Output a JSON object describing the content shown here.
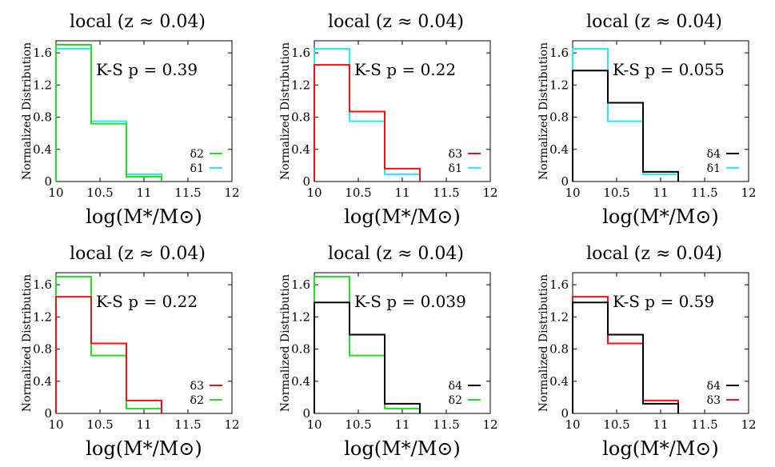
{
  "chart_data": [
    {
      "type": "histogram",
      "title": "local (z ≈ 0.04)",
      "xlabel": "log(M*/M⊙)",
      "ylabel": "Normalized Distribution",
      "xlim": [
        10,
        12
      ],
      "ylim": [
        0,
        1.75
      ],
      "x_ticks": [
        "10",
        "10.5",
        "11",
        "11.5",
        "12"
      ],
      "y_ticks": [
        "0",
        "0.4",
        "0.8",
        "1.2",
        "1.6"
      ],
      "annotation": "K-S p = 0.39",
      "bin_edges": [
        10,
        10.4,
        10.8,
        11.2
      ],
      "series": [
        {
          "name": "δ2",
          "color": "#22dd22",
          "values": [
            1.7,
            0.72,
            0.06
          ]
        },
        {
          "name": "δ1",
          "color": "#22eeee",
          "values": [
            1.65,
            0.75,
            0.09
          ]
        }
      ]
    },
    {
      "type": "histogram",
      "title": "local (z ≈ 0.04)",
      "xlabel": "log(M*/M⊙)",
      "ylabel": "Normalized Distribution",
      "xlim": [
        10,
        12
      ],
      "ylim": [
        0,
        1.75
      ],
      "x_ticks": [
        "10",
        "10.5",
        "11",
        "11.5",
        "12"
      ],
      "y_ticks": [
        "0",
        "0.4",
        "0.8",
        "1.2",
        "1.6"
      ],
      "annotation": "K-S p = 0.22",
      "bin_edges": [
        10,
        10.4,
        10.8,
        11.2
      ],
      "series": [
        {
          "name": "δ3",
          "color": "#ee1111",
          "values": [
            1.45,
            0.87,
            0.16
          ]
        },
        {
          "name": "δ1",
          "color": "#22eeee",
          "values": [
            1.65,
            0.75,
            0.09
          ]
        }
      ]
    },
    {
      "type": "histogram",
      "title": "local (z ≈ 0.04)",
      "xlabel": "log(M*/M⊙)",
      "ylabel": "Normalized Distribution",
      "xlim": [
        10,
        12
      ],
      "ylim": [
        0,
        1.75
      ],
      "x_ticks": [
        "10",
        "10.5",
        "11",
        "11.5",
        "12"
      ],
      "y_ticks": [
        "0",
        "0.4",
        "0.8",
        "1.2",
        "1.6"
      ],
      "annotation": "K-S p = 0.055",
      "bin_edges": [
        10,
        10.4,
        10.8,
        11.2
      ],
      "series": [
        {
          "name": "δ4",
          "color": "#000000",
          "values": [
            1.38,
            0.98,
            0.12
          ]
        },
        {
          "name": "δ1",
          "color": "#22eeee",
          "values": [
            1.65,
            0.75,
            0.09
          ]
        }
      ]
    },
    {
      "type": "histogram",
      "title": "local (z ≈ 0.04)",
      "xlabel": "log(M*/M⊙)",
      "ylabel": "Normalized Distribution",
      "xlim": [
        10,
        12
      ],
      "ylim": [
        0,
        1.75
      ],
      "x_ticks": [
        "10",
        "10.5",
        "11",
        "11.5",
        "12"
      ],
      "y_ticks": [
        "0",
        "0.4",
        "0.8",
        "1.2",
        "1.6"
      ],
      "annotation": "K-S p = 0.22",
      "bin_edges": [
        10,
        10.4,
        10.8,
        11.2
      ],
      "series": [
        {
          "name": "δ3",
          "color": "#ee1111",
          "values": [
            1.45,
            0.87,
            0.16
          ]
        },
        {
          "name": "δ2",
          "color": "#22dd22",
          "values": [
            1.7,
            0.72,
            0.06
          ]
        }
      ]
    },
    {
      "type": "histogram",
      "title": "local (z ≈ 0.04)",
      "xlabel": "log(M*/M⊙)",
      "ylabel": "Normalized Distribution",
      "xlim": [
        10,
        12
      ],
      "ylim": [
        0,
        1.75
      ],
      "x_ticks": [
        "10",
        "10.5",
        "11",
        "11.5",
        "12"
      ],
      "y_ticks": [
        "0",
        "0.4",
        "0.8",
        "1.2",
        "1.6"
      ],
      "annotation": "K-S p = 0.039",
      "bin_edges": [
        10,
        10.4,
        10.8,
        11.2
      ],
      "series": [
        {
          "name": "δ4",
          "color": "#000000",
          "values": [
            1.38,
            0.98,
            0.12
          ]
        },
        {
          "name": "δ2",
          "color": "#22dd22",
          "values": [
            1.7,
            0.72,
            0.06
          ]
        }
      ]
    },
    {
      "type": "histogram",
      "title": "local (z ≈ 0.04)",
      "xlabel": "log(M*/M⊙)",
      "ylabel": "Normalized Distribution",
      "xlim": [
        10,
        12
      ],
      "ylim": [
        0,
        1.75
      ],
      "x_ticks": [
        "10",
        "10.5",
        "11",
        "11.5",
        "12"
      ],
      "y_ticks": [
        "0",
        "0.4",
        "0.8",
        "1.2",
        "1.6"
      ],
      "annotation": "K-S p = 0.59",
      "bin_edges": [
        10,
        10.4,
        10.8,
        11.2
      ],
      "series": [
        {
          "name": "δ4",
          "color": "#000000",
          "values": [
            1.38,
            0.98,
            0.12
          ]
        },
        {
          "name": "δ3",
          "color": "#ee1111",
          "values": [
            1.45,
            0.87,
            0.16
          ]
        }
      ]
    }
  ]
}
